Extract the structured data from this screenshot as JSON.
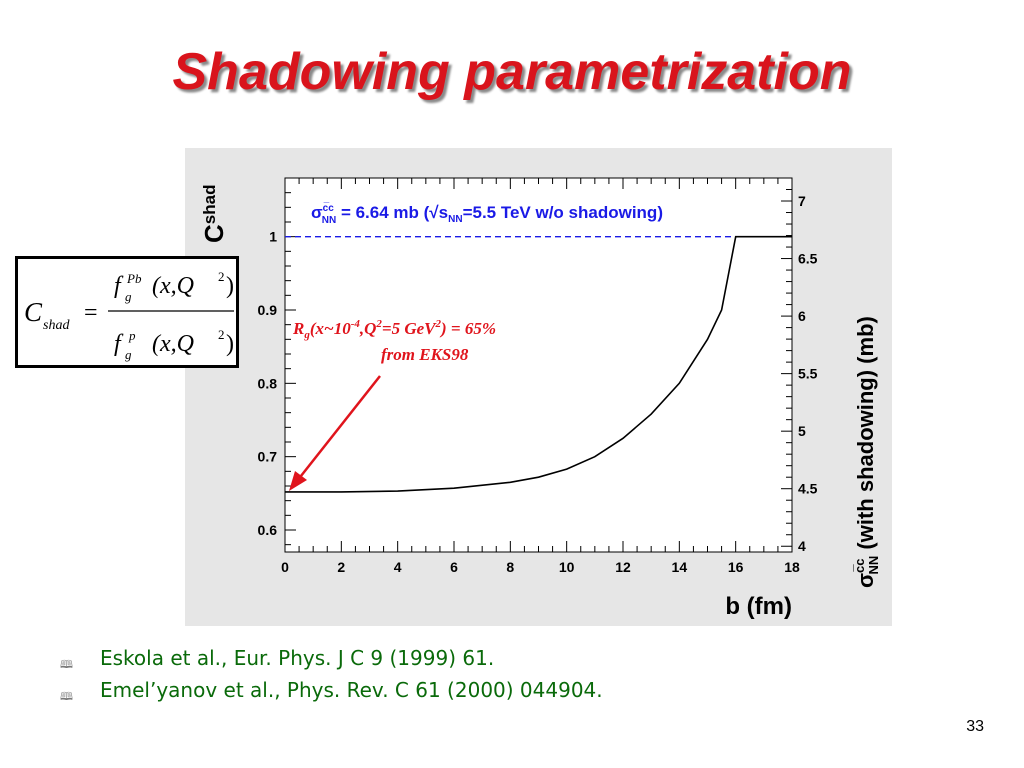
{
  "slide": {
    "title": "Shadowing parametrization",
    "page_number": "33"
  },
  "formula": {
    "lhs": "C",
    "lhs_sub": "shad",
    "equals": "=",
    "num_f": "f",
    "num_sub": "g",
    "num_sup": "Pb",
    "num_args": "(x,Q",
    "args_exp": "2",
    "args_close": ")",
    "den_f": "f",
    "den_sub": "g",
    "den_sup": "p"
  },
  "references": [
    {
      "bullet": "🕮",
      "text": "Eskola et al.,  Eur. Phys. J C 9 (1999) 61."
    },
    {
      "bullet": "🕮",
      "text": "Emel’yanov et al., Phys. Rev. C 61 (2000) 044904."
    }
  ],
  "chart_data": {
    "type": "line",
    "series": [
      {
        "x": [
          0,
          2,
          4,
          6,
          8,
          9,
          10,
          11,
          12,
          13,
          14,
          15,
          15.5,
          16,
          18
        ],
        "y": [
          0.652,
          0.652,
          0.653,
          0.657,
          0.665,
          0.672,
          0.683,
          0.7,
          0.725,
          0.758,
          0.8,
          0.86,
          0.9,
          1.0,
          1.0
        ]
      }
    ],
    "reference_line": {
      "y": 1.0
    },
    "xlabel": "b (fm)",
    "ylabel_left": {
      "main": "C",
      "sub": "shad"
    },
    "ylabel_right": {
      "sigma": "σ",
      "sup": "c̅c",
      "sub": "NN",
      "rest": " (with shadowing) (mb)"
    },
    "xlim": [
      0,
      18
    ],
    "ylim": [
      0.57,
      1.08
    ],
    "y2lim": [
      3.95,
      7.2
    ],
    "xticks": [
      "0",
      "2",
      "4",
      "6",
      "8",
      "10",
      "12",
      "14",
      "16",
      "18"
    ],
    "yticks": [
      "0.6",
      "0.7",
      "0.8",
      "0.9",
      "1"
    ],
    "y2ticks": [
      "4",
      "4.5",
      "5",
      "5.5",
      "6",
      "6.5",
      "7"
    ],
    "legend": {
      "sigma": "σ",
      "sup": "c̅c",
      "sub": "NN",
      "value": " = 6.64 mb (",
      "sqrt": "√",
      "s": "s",
      "s_sub": "NN",
      "rest": "=5.5 TeV w/o shadowing)"
    },
    "annotation": {
      "R": "R",
      "R_sub": "g",
      "part1": "(x~10",
      "exp1": "-4",
      "part2": ",Q",
      "exp2": "2",
      "part3": "=5 GeV",
      "exp3": "2",
      "part4": ") = 65%",
      "line2": "from EKS98"
    },
    "colors": {
      "title": "#d9141c",
      "legend": "#1a1ae6",
      "reference_line": "#1a1ae6",
      "annotation": "#e0141c",
      "curve": "#000000",
      "panel": "#e6e6e6",
      "references": "#0a6a0a"
    },
    "grid": false
  }
}
